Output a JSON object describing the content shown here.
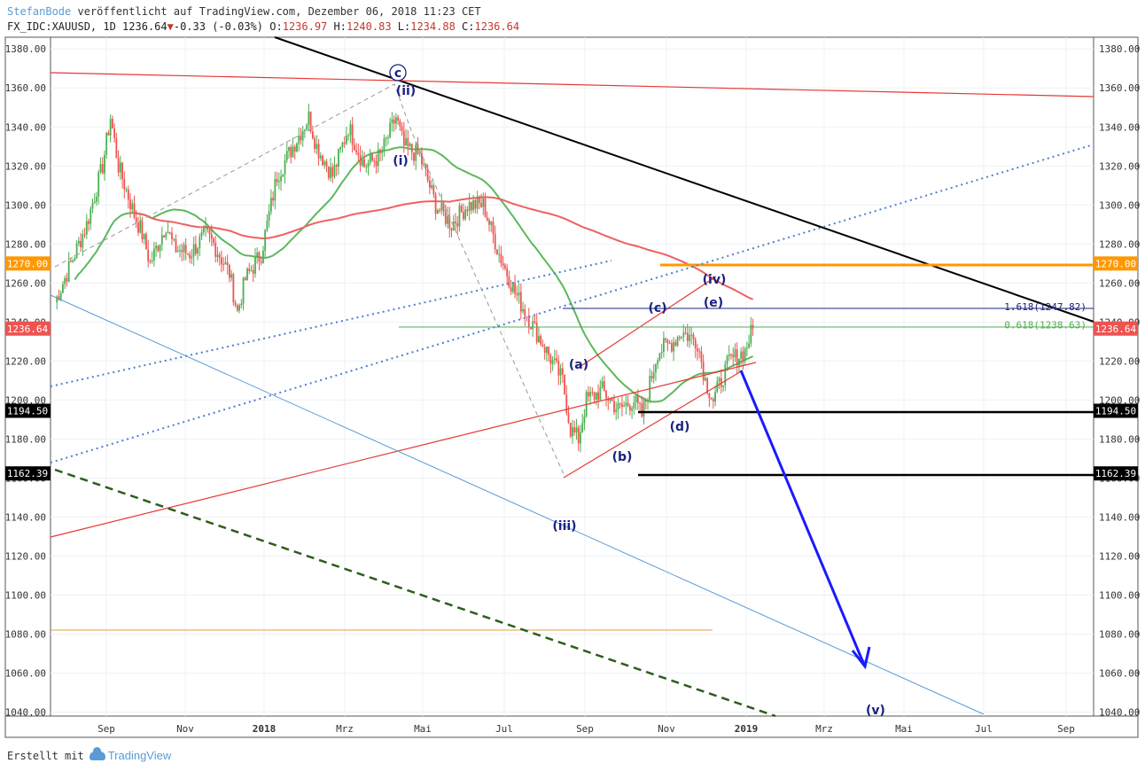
{
  "header": {
    "author": "StefanBode",
    "published": "veröffentlicht auf TradingView.com, Dezember 06, 2018 11:23 CET",
    "symbol": "FX_IDC:XAUUSD, 1D 1236.64",
    "change_arrow": "▼",
    "change": "-0.33 (-0.03%)",
    "o_label": "O:",
    "o_value": "1236.97",
    "h_label": "H:",
    "h_value": "1240.83",
    "l_label": "L:",
    "l_value": "1234.88",
    "c_label": "C:",
    "c_value": "1236.64"
  },
  "footer": {
    "created_with": "Erstellt mit",
    "brand": "TradingView"
  },
  "colors": {
    "up": "#4caf50",
    "down": "#ef5350",
    "ma_green": "#5cb85c",
    "ma_red": "#f06060",
    "orange": "#ff9800",
    "black": "#000000",
    "blue_arrow": "#1a1aff",
    "wave_label": "#1a237e"
  },
  "chart_data": {
    "type": "candlestick",
    "symbol": "FX_IDC:XAUUSD",
    "interval": "1D",
    "ylim": [
      1038,
      1386
    ],
    "y_ticks": [
      1040,
      1060,
      1080,
      1100,
      1120,
      1140,
      1160,
      1180,
      1200,
      1220,
      1240,
      1260,
      1280,
      1300,
      1320,
      1340,
      1360,
      1380
    ],
    "x_ticks": [
      "Sep",
      "Nov",
      "2018",
      "Mrz",
      "Mai",
      "Jul",
      "Sep",
      "Nov",
      "2019",
      "Mrz",
      "Mai",
      "Jul",
      "Sep"
    ],
    "price_path": [
      [
        0,
        1250
      ],
      [
        2,
        1270
      ],
      [
        4,
        1290
      ],
      [
        6,
        1320
      ],
      [
        7,
        1345
      ],
      [
        8,
        1320
      ],
      [
        10,
        1295
      ],
      [
        11,
        1285
      ],
      [
        12,
        1270
      ],
      [
        14,
        1290
      ],
      [
        15,
        1278
      ],
      [
        17,
        1275
      ],
      [
        19,
        1285
      ],
      [
        20,
        1280
      ],
      [
        22,
        1265
      ],
      [
        23,
        1245
      ],
      [
        24,
        1262
      ],
      [
        26,
        1275
      ],
      [
        28,
        1315
      ],
      [
        30,
        1330
      ],
      [
        32,
        1345
      ],
      [
        33,
        1330
      ],
      [
        35,
        1315
      ],
      [
        37,
        1340
      ],
      [
        39,
        1320
      ],
      [
        41,
        1325
      ],
      [
        43,
        1345
      ],
      [
        44,
        1330
      ],
      [
        46,
        1325
      ],
      [
        48,
        1300
      ],
      [
        50,
        1290
      ],
      [
        52,
        1300
      ],
      [
        54,
        1300
      ],
      [
        56,
        1275
      ],
      [
        58,
        1255
      ],
      [
        60,
        1240
      ],
      [
        62,
        1225
      ],
      [
        64,
        1210
      ],
      [
        65,
        1185
      ],
      [
        66,
        1180
      ],
      [
        67,
        1200
      ],
      [
        69,
        1205
      ],
      [
        71,
        1195
      ],
      [
        73,
        1200
      ],
      [
        74,
        1192
      ],
      [
        76,
        1225
      ],
      [
        78,
        1230
      ],
      [
        79,
        1235
      ],
      [
        81,
        1230
      ],
      [
        82,
        1210
      ],
      [
        83,
        1200
      ],
      [
        85,
        1220
      ],
      [
        87,
        1225
      ],
      [
        88,
        1237
      ]
    ],
    "current_price": 1236.64,
    "price_levels": [
      {
        "price": 1270.0,
        "label": "1270.00",
        "color": "#ff9800"
      },
      {
        "price": 1194.5,
        "label": "1194.50",
        "color": "#000000"
      },
      {
        "price": 1162.39,
        "label": "1162.39",
        "color": "#000000"
      },
      {
        "price": 1236.64,
        "label": "1236.64",
        "color": "#ef5350"
      }
    ],
    "fib_levels": [
      {
        "text": "1.618(1247.82)",
        "price": 1247.82,
        "color": "#1a237e"
      },
      {
        "text": "0.618(1238.63)",
        "price": 1238.63,
        "color": "#4caf50"
      }
    ],
    "wave_labels": [
      "c",
      "(ii)",
      "(i)",
      "(iii)",
      "(a)",
      "(b)",
      "(c)",
      "(d)",
      "(e)",
      "(iv)",
      "(v)"
    ]
  }
}
